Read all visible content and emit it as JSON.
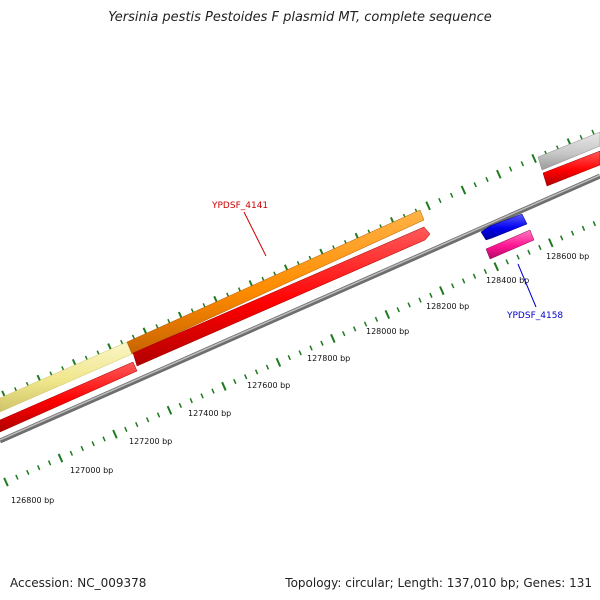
{
  "title": "Yersinia pestis Pestoides F plasmid MT, complete sequence",
  "footer": {
    "accession": "Accession: NC_009378",
    "stats": "Topology: circular; Length: 137,010 bp; Genes: 131"
  },
  "colors": {
    "background": "#ffffff",
    "backbone": "#8f8f8f",
    "ticks": "#1e7a1e",
    "label_red": "#cc0000",
    "label_blue": "#0000cc"
  },
  "scale_labels": [
    "126800 bp",
    "127000 bp",
    "127200 bp",
    "127400 bp",
    "127600 bp",
    "127800 bp",
    "128000 bp",
    "128200 bp",
    "128400 bp",
    "128600 bp"
  ],
  "genes": [
    {
      "id": "yellow-feature",
      "color": "#f0e68c",
      "strand": "forward",
      "track": "outer"
    },
    {
      "id": "YPDSF_4141",
      "color": "#ff8c00",
      "strand": "forward",
      "track": "outer"
    },
    {
      "id": "red-feature-left",
      "color": "#ff0000",
      "strand": "forward",
      "track": "inner"
    },
    {
      "id": "red-feature-mid",
      "color": "#ff0000",
      "strand": "forward",
      "track": "inner"
    },
    {
      "id": "YPDSF_4158",
      "color": "#0000ee",
      "strand": "reverse",
      "track": "inner"
    },
    {
      "id": "pink-feature",
      "color": "#ff1493",
      "strand": "forward",
      "track": "inner-2"
    },
    {
      "id": "grey-feature",
      "color": "#c8c8c8",
      "strand": "forward",
      "track": "outer"
    },
    {
      "id": "red-feature-right",
      "color": "#ff0000",
      "strand": "forward",
      "track": "inner"
    }
  ],
  "gene_labels": [
    {
      "text": "YPDSF_4141",
      "color": "#cc0000"
    },
    {
      "text": "YPDSF_4158",
      "color": "#0000cc"
    }
  ]
}
